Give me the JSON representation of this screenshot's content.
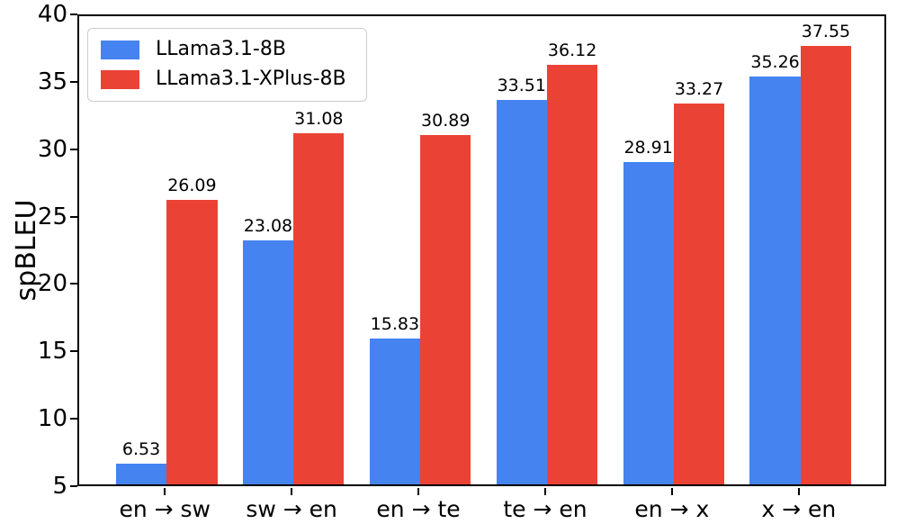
{
  "chart_data": {
    "type": "bar",
    "title": "",
    "ylabel": "spBLEU",
    "xlabel": "",
    "categories": [
      "en → sw",
      "sw → en",
      "en → te",
      "te → en",
      "en → x",
      "x → en"
    ],
    "series": [
      {
        "name": "LLama3.1-8B",
        "color": "#4583F1",
        "values": [
          6.53,
          23.08,
          15.83,
          33.51,
          28.91,
          35.26
        ]
      },
      {
        "name": "LLama3.1-XPlus-8B",
        "color": "#EA4335",
        "values": [
          26.09,
          31.08,
          30.89,
          36.12,
          33.27,
          37.55
        ]
      }
    ],
    "ylim": [
      5,
      40
    ],
    "yticks": [
      5,
      10,
      15,
      20,
      25,
      30,
      35,
      40
    ],
    "xlim": [
      -0.69,
      5.69
    ],
    "bar_width": 0.4,
    "value_label_decimals": 2,
    "grid": false,
    "legend_position": "upper-left",
    "axis_color": "#000000",
    "background_color": "#ffffff"
  }
}
